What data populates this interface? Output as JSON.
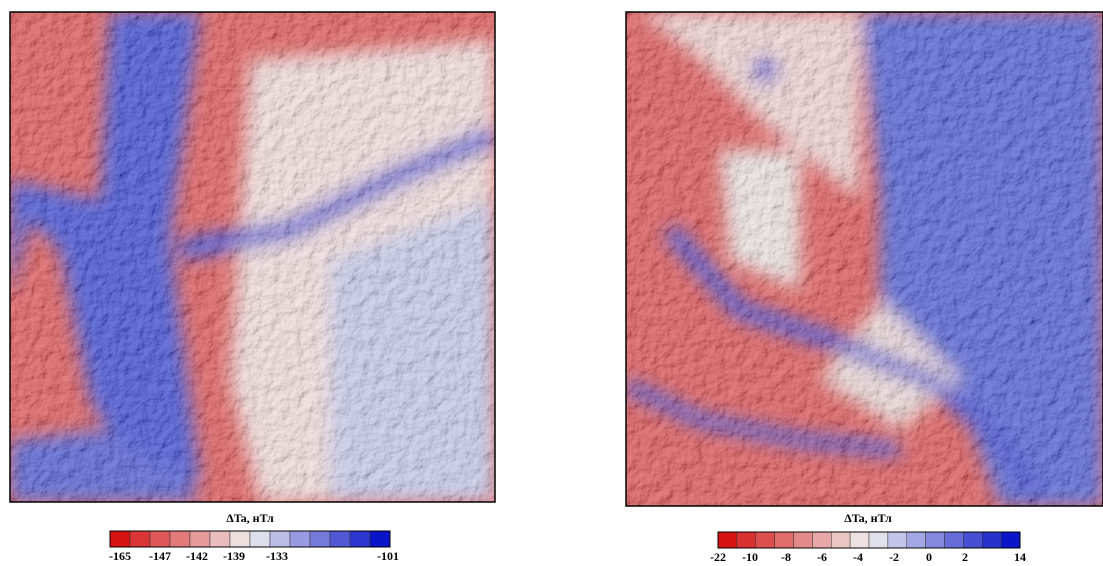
{
  "panels": [
    {
      "colorbar": {
        "title": "ΔTa, нТл",
        "ticks": [
          "-165",
          "-147",
          "-142",
          "-139",
          "-133",
          "-101"
        ]
      }
    },
    {
      "colorbar": {
        "title": "ΔTa, нТл",
        "ticks": [
          "-22",
          "-10",
          "-8",
          "-6",
          "-4",
          "-2",
          "0",
          "2",
          "14"
        ]
      }
    }
  ]
}
